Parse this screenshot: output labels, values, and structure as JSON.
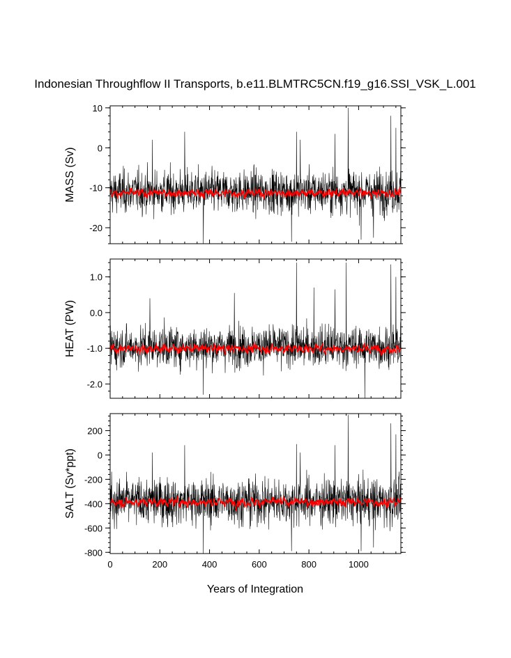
{
  "title": "Indonesian Throughflow II Transports, b.e11.BLMTRC5CN.f19_g16.SSI_VSK_L.001",
  "xlabel": "Years of Integration",
  "colors": {
    "raw": "#000000",
    "smoothed": "#ff0000",
    "frame": "#000000"
  },
  "chart_data": [
    {
      "type": "line",
      "ylabel": "MASS (Sv)",
      "xlim": [
        0,
        1170
      ],
      "ylim": [
        -24,
        10.5
      ],
      "yticks": [
        10,
        0,
        -10,
        -20
      ],
      "ytick_labels": [
        "10",
        "0",
        "-10",
        "-20"
      ],
      "raw": {
        "mean": -11,
        "spread": 4.2,
        "outliers": [
          [
            170,
            2
          ],
          [
            300,
            4
          ],
          [
            750,
            4
          ],
          [
            765,
            2
          ],
          [
            905,
            3.5
          ],
          [
            958,
            10
          ],
          [
            1130,
            8
          ],
          [
            1150,
            5
          ],
          [
            375,
            -24
          ],
          [
            730,
            -23.5
          ],
          [
            1010,
            -23
          ],
          [
            1060,
            -22.5
          ]
        ]
      },
      "smoothed": {
        "mean": -11.3,
        "amplitude": 1.0
      }
    },
    {
      "type": "line",
      "ylabel": "HEAT (PW)",
      "xlim": [
        0,
        1170
      ],
      "ylim": [
        -2.4,
        1.5
      ],
      "yticks": [
        1.0,
        0.0,
        -1.0,
        -2.0
      ],
      "ytick_labels": [
        "1.0",
        "0.0",
        "-1.0",
        "-2.0"
      ],
      "raw": {
        "mean": -0.95,
        "spread": 0.45,
        "outliers": [
          [
            160,
            0.4
          ],
          [
            500,
            0.55
          ],
          [
            750,
            1.4
          ],
          [
            820,
            0.7
          ],
          [
            905,
            0.65
          ],
          [
            950,
            1.4
          ],
          [
            1130,
            1.35
          ],
          [
            1150,
            1.0
          ],
          [
            375,
            -2.3
          ],
          [
            1025,
            -2.4
          ]
        ]
      },
      "smoothed": {
        "mean": -1.0,
        "amplitude": 0.12
      }
    },
    {
      "type": "line",
      "ylabel": "SALT (Sv*ppt)",
      "xlim": [
        0,
        1170
      ],
      "ylim": [
        -810,
        340
      ],
      "yticks": [
        200,
        0,
        -200,
        -400,
        -600,
        -800
      ],
      "ytick_labels": [
        "200",
        "0",
        "-200",
        "-400",
        "-600",
        "-800"
      ],
      "xticks": [
        0,
        200,
        400,
        600,
        800,
        1000
      ],
      "xtick_labels": [
        "0",
        "200",
        "400",
        "600",
        "800",
        "1000"
      ],
      "raw": {
        "mean": -380,
        "spread": 150,
        "outliers": [
          [
            170,
            20
          ],
          [
            300,
            80
          ],
          [
            750,
            90
          ],
          [
            765,
            20
          ],
          [
            905,
            80
          ],
          [
            958,
            330
          ],
          [
            1130,
            260
          ],
          [
            1150,
            170
          ],
          [
            375,
            -810
          ],
          [
            730,
            -790
          ],
          [
            1010,
            -790
          ],
          [
            1060,
            -760
          ]
        ]
      },
      "smoothed": {
        "mean": -385,
        "amplitude": 35
      }
    }
  ]
}
